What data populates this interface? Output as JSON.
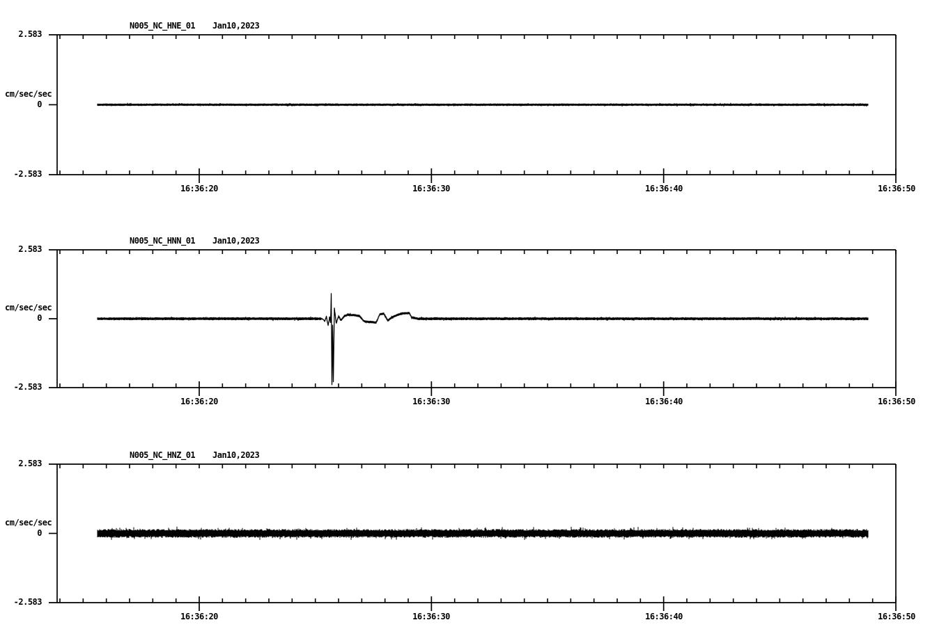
{
  "app": {
    "background_color": "#ffffff",
    "trace_color": "#000000"
  },
  "chart_data": {
    "type": "line",
    "kind": "three-component strong-motion seismogram",
    "grid": false,
    "x_axis": {
      "major_tick_labels": [
        "16:36:20",
        "16:36:30",
        "16:36:40",
        "16:36:50"
      ],
      "major_tick_interval_sec": 10,
      "minor_tick_interval_sec": 1,
      "axis_time_range": [
        "16:36:14",
        "16:36:50"
      ],
      "trace_time_range": [
        "16:36:15.7",
        "16:36:48.8"
      ]
    },
    "y_axis": {
      "label": "cm/sec/sec",
      "tick_labels": [
        "2.583",
        "0",
        "-2.583"
      ],
      "tick_values": [
        2.583,
        0,
        -2.583
      ],
      "ylim": [
        -2.583,
        2.583
      ]
    },
    "panels": [
      {
        "station": "N005_NC_HNE_01",
        "date": "Jan10,2023",
        "ylabel": "cm/sec/sec",
        "ytick_labels": [
          "2.583",
          "0",
          "-2.583"
        ],
        "series": {
          "name": "HNE",
          "baseline": 0,
          "noise_peak_amp": 0.05,
          "description": "flat low-amplitude high-frequency noise, no visible event"
        }
      },
      {
        "station": "N005_NC_HNN_01",
        "date": "Jan10,2023",
        "ylabel": "cm/sec/sec",
        "ytick_labels": [
          "2.583",
          "0",
          "-2.583"
        ],
        "series": {
          "name": "HNN",
          "baseline": 0,
          "noise_peak_amp": 0.06,
          "description": "flat noise with impulsive spike at ~16:36:25.7 (peak +0.94, trough -2.46 cm/sec/sec) followed by low-frequency coda until ~16:36:29.5",
          "event_time": "16:36:25.7",
          "event_peak_up": 0.94,
          "event_peak_down": -2.46,
          "event_keypoints_t_sec_after_16_36_20": [
            5.3,
            5.4,
            5.48,
            5.55,
            5.62,
            5.66,
            5.685,
            5.715,
            5.745,
            5.775,
            5.82,
            5.9,
            6.0,
            6.1,
            6.25,
            6.42,
            6.7,
            6.9,
            7.1,
            7.45,
            7.62,
            7.78,
            7.95,
            8.12,
            8.3,
            8.5,
            8.75,
            9.05,
            9.15,
            9.3,
            9.42
          ],
          "event_keypoints_amp": [
            0.0,
            -0.1,
            0.08,
            -0.28,
            0.1,
            -0.2,
            0.94,
            -2.46,
            -0.25,
            -2.35,
            0.38,
            -0.18,
            0.1,
            -0.06,
            0.1,
            0.15,
            0.13,
            0.1,
            -0.1,
            -0.13,
            -0.14,
            0.17,
            0.19,
            -0.07,
            0.05,
            0.13,
            0.2,
            0.21,
            0.05,
            0.02,
            0.0
          ]
        }
      },
      {
        "station": "N005_NC_HNZ_01",
        "date": "Jan10,2023",
        "ylabel": "cm/sec/sec",
        "ytick_labels": [
          "2.583",
          "0",
          "-2.583"
        ],
        "series": {
          "name": "HNZ",
          "baseline": 0,
          "noise_peak_amp": 0.17,
          "description": "dense thick high-frequency noise band, no visible event"
        }
      }
    ]
  }
}
